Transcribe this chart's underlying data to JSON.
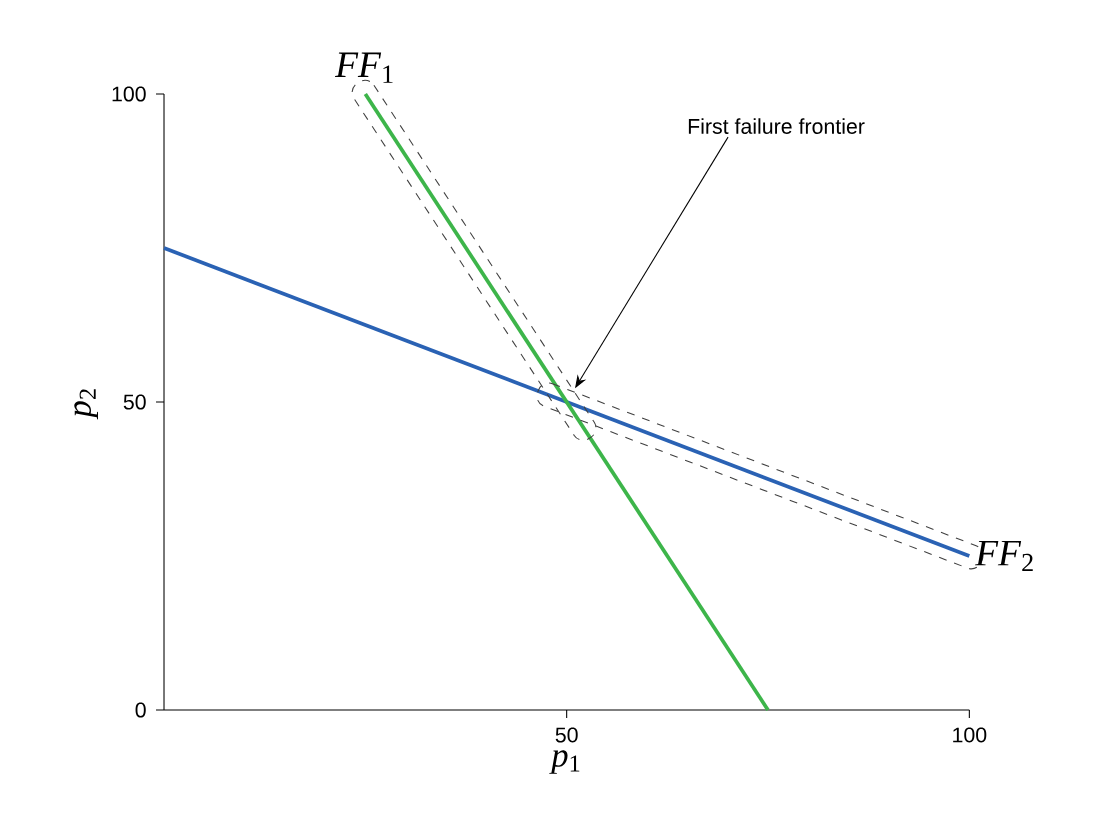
{
  "chart_data": {
    "type": "line",
    "xlabel": "*p*$_{1}$",
    "ylabel": "*p*$_{2}$",
    "series": [
      {
        "color": "#2a62b4",
        "x": [
          0,
          100
        ],
        "values": [
          75,
          25
        ]
      },
      {
        "color": "#3db54a",
        "x": [
          25,
          75
        ],
        "values": [
          100,
          0
        ]
      }
    ],
    "xlim": [
      0,
      100
    ],
    "ylim": [
      0,
      100
    ],
    "xticks": [
      50,
      100
    ],
    "yticks": [
      0,
      50,
      100
    ],
    "grid": false,
    "marker": "none",
    "line_style": "solid",
    "annotations": [
      {
        "text": "*FF*$_{1}$",
        "x": 25,
        "y": 100
      },
      {
        "text": "*FF*$_{2}$",
        "x": 100,
        "y": 25
      },
      "First failure frontier"
    ]
  }
}
